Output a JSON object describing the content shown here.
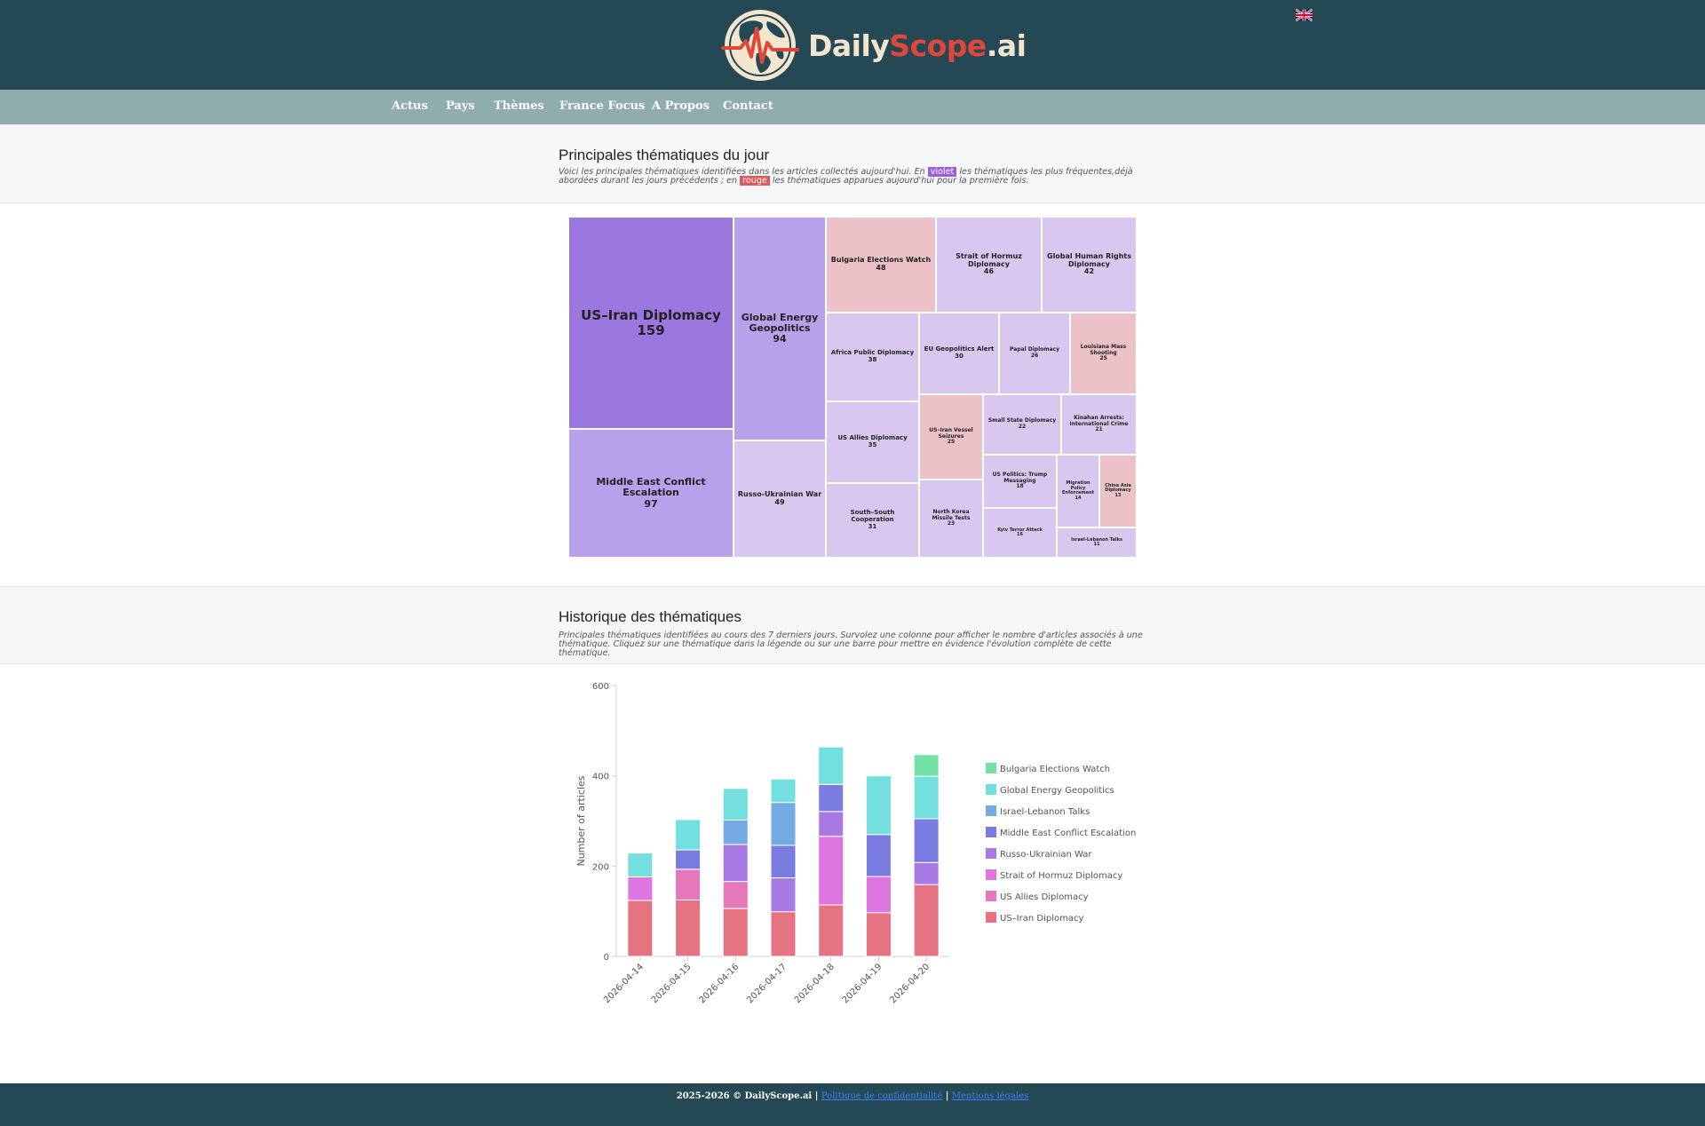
{
  "header": {
    "logo_part1": "Daily",
    "logo_part2": "Scope",
    "logo_part3": ".ai",
    "language_flag": "uk-flag-icon"
  },
  "nav": {
    "items": [
      "Actus",
      "Pays",
      "Thèmes",
      "France Focus",
      "A Propos",
      "Contact"
    ]
  },
  "topics_section": {
    "title": "Principales thématiques du jour",
    "desc_part1": "Voici les principales thématiques identifiées dans les articles collectés aujourd'hui. En",
    "tag_violet": "violet",
    "desc_part2": "les thématiques les plus fréquentes,déjà abordées durant les jours précédents ; en",
    "tag_rouge": "rouge",
    "desc_part3": "les thématiques apparues aujourd'hui pour la première fois."
  },
  "treemap": [
    {
      "label": "US–Iran Diplomacy",
      "count": "159",
      "kind": "recurring-high"
    },
    {
      "label": "Middle East Conflict Escalation",
      "count": "97",
      "kind": "recurring-mid"
    },
    {
      "label": "Global Energy Geopolitics",
      "count": "94",
      "kind": "recurring-mid"
    },
    {
      "label": "Russo-Ukrainian War",
      "count": "49",
      "kind": "recurring-low"
    },
    {
      "label": "Bulgaria Elections Watch",
      "count": "48",
      "kind": "new"
    },
    {
      "label": "Strait of Hormuz Diplomacy",
      "count": "46",
      "kind": "recurring-low"
    },
    {
      "label": "Global Human Rights Diplomacy",
      "count": "42",
      "kind": "recurring-low"
    },
    {
      "label": "Africa Public Diplomacy",
      "count": "38",
      "kind": "recurring-low"
    },
    {
      "label": "US Allies Diplomacy",
      "count": "35",
      "kind": "recurring-low"
    },
    {
      "label": "South–South Cooperation",
      "count": "31",
      "kind": "recurring-low"
    },
    {
      "label": "EU Geopolitics Alert",
      "count": "30",
      "kind": "recurring-low"
    },
    {
      "label": "Papal Diplomacy",
      "count": "26",
      "kind": "recurring-low"
    },
    {
      "label": "Louisiana Mass Shooting",
      "count": "25",
      "kind": "new"
    },
    {
      "label": "US–Iran Vessel Seizures",
      "count": "25",
      "kind": "new"
    },
    {
      "label": "North Korea Missile Tests",
      "count": "23",
      "kind": "recurring-low"
    },
    {
      "label": "Small State Diplomacy",
      "count": "22",
      "kind": "recurring-low"
    },
    {
      "label": "Kinahan Arrests: International Crime",
      "count": "21",
      "kind": "recurring-low"
    },
    {
      "label": "US Politics: Trump Messaging",
      "count": "18",
      "kind": "recurring-low"
    },
    {
      "label": "Kyiv Terror Attack",
      "count": "16",
      "kind": "recurring-low"
    },
    {
      "label": "Migration Policy Enforcement",
      "count": "14",
      "kind": "recurring-low"
    },
    {
      "label": "China Asia Diplomacy",
      "count": "13",
      "kind": "new"
    },
    {
      "label": "Israel-Lebanon Talks",
      "count": "11",
      "kind": "recurring-low"
    }
  ],
  "treemap_colors": {
    "recurring-high": "#9b77e0",
    "recurring-mid": "#b7a1ea",
    "recurring-low": "#d8c8ef",
    "new": "#ecc2c8"
  },
  "history_section": {
    "title": "Historique des thématiques",
    "desc": "Principales thématiques identifiées au cours des 7 derniers jours. Survolez une colonne pour afficher le nombre d'articles associés à une thématique. Cliquez sur une thématique dans la légende ou sur une barre pour mettre en évidence l'évolution complète de cette thématique."
  },
  "chart_data": {
    "type": "bar",
    "stacked": true,
    "categories": [
      "2026-04-14",
      "2026-04-15",
      "2026-04-16",
      "2026-04-17",
      "2026-04-18",
      "2026-04-19",
      "2026-04-20"
    ],
    "ylabel": "Number of articles",
    "xlabel": "",
    "ylim": [
      0,
      600
    ],
    "yticks": [
      0,
      200,
      400,
      600
    ],
    "grid": false,
    "legend_position": "right",
    "series": [
      {
        "name": "US–Iran Diplomacy",
        "color": "#e57382",
        "values": [
          124,
          125,
          106,
          99,
          114,
          97,
          159
        ]
      },
      {
        "name": "US Allies Diplomacy",
        "color": "#e677b8",
        "values": [
          0,
          68,
          60,
          0,
          0,
          0,
          0
        ]
      },
      {
        "name": "Strait of Hormuz Diplomacy",
        "color": "#dd76e0",
        "values": [
          52,
          0,
          0,
          0,
          152,
          80,
          0
        ]
      },
      {
        "name": "Russo-Ukrainian War",
        "color": "#a77be3",
        "values": [
          0,
          0,
          82,
          75,
          55,
          0,
          49
        ]
      },
      {
        "name": "Middle East Conflict Escalation",
        "color": "#7b7ce2",
        "values": [
          0,
          43,
          0,
          72,
          60,
          93,
          97
        ]
      },
      {
        "name": "Israel-Lebanon Talks",
        "color": "#75abe3",
        "values": [
          0,
          0,
          54,
          95,
          0,
          0,
          0
        ]
      },
      {
        "name": "Global Energy Geopolitics",
        "color": "#73e0df",
        "values": [
          53,
          67,
          70,
          52,
          83,
          130,
          94
        ]
      },
      {
        "name": "Bulgaria Elections Watch",
        "color": "#74e1a6",
        "values": [
          0,
          0,
          0,
          0,
          0,
          0,
          48
        ]
      }
    ],
    "legend_order": [
      "Bulgaria Elections Watch",
      "Global Energy Geopolitics",
      "Israel-Lebanon Talks",
      "Middle East Conflict Escalation",
      "Russo-Ukrainian War",
      "Strait of Hormuz Diplomacy",
      "US Allies Diplomacy",
      "US–Iran Diplomacy"
    ]
  },
  "footer": {
    "copyright": "2025-2026 © DailyScope.ai |",
    "privacy_link": "Politique de confidentialité",
    "separator": "|",
    "legal_link": "Mentions légales"
  }
}
